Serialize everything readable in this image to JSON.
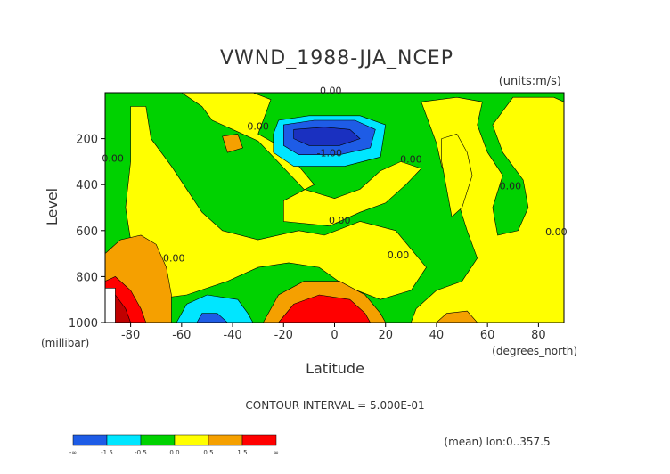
{
  "chart_data": {
    "type": "contour",
    "title": "VWND_1988-JJA_NCEP",
    "units": "(units:m/s)",
    "xlabel": "Latitude",
    "ylabel": "Level",
    "x_unit_label": "(degrees_north)",
    "y_unit_label": "(millibar)",
    "xlim": [
      -90,
      90
    ],
    "ylim": [
      1000,
      0
    ],
    "x_ticks": [
      -80,
      -60,
      -40,
      -20,
      0,
      20,
      40,
      60,
      80
    ],
    "y_ticks": [
      200,
      400,
      600,
      800,
      1000
    ],
    "contour_interval_text": "CONTOUR INTERVAL = 5.000E-01",
    "mean_text": "(mean) lon:0..357.5",
    "contour_labels": [
      {
        "text": "0.00",
        "lat": -1.5,
        "lev": 5
      },
      {
        "text": "0.00",
        "lat": -30,
        "lev": 160
      },
      {
        "text": "-1.00",
        "lat": -2,
        "lev": 278
      },
      {
        "text": "0.00",
        "lat": 30,
        "lev": 305
      },
      {
        "text": "0.00",
        "lat": -87,
        "lev": 300
      },
      {
        "text": "0.00",
        "lat": 69,
        "lev": 420
      },
      {
        "text": "0.00",
        "lat": 2,
        "lev": 570
      },
      {
        "text": "0.00",
        "lat": 87,
        "lev": 620
      },
      {
        "text": "0.00",
        "lat": -63,
        "lev": 735
      },
      {
        "text": "0.00",
        "lat": 25,
        "lev": 720
      }
    ],
    "colorbar": {
      "colors": [
        "#1e5ce6",
        "#00e6ff",
        "#00d200",
        "#ffff00",
        "#f5a000",
        "#ff0000"
      ],
      "labels": [
        "-∞",
        "-1.5",
        "-0.5",
        "0.0",
        "0.5",
        "1.5",
        "∞"
      ]
    }
  },
  "colors": {
    "blue": "#1e5ce6",
    "cyan": "#00e6ff",
    "green": "#00d200",
    "yellow": "#ffff00",
    "orange": "#f5a000",
    "red": "#ff0000",
    "darkblue": "#1a30c0",
    "darkred": "#c00000"
  }
}
